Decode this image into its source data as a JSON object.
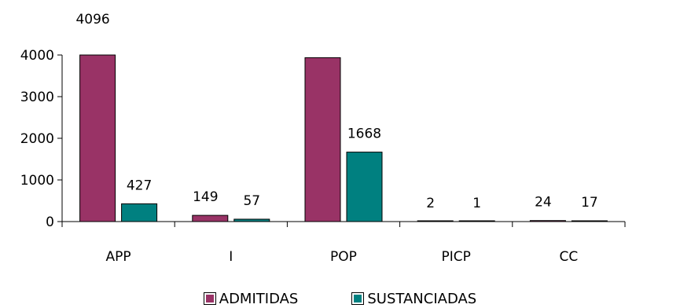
{
  "chart_data": {
    "type": "bar",
    "categories": [
      "APP",
      "I",
      "POP",
      "PICP",
      "CC"
    ],
    "series": [
      {
        "name": "ADMITIDAS",
        "color": "#993366",
        "values": [
          4096,
          149,
          3936,
          2,
          24
        ]
      },
      {
        "name": "SUSTANCIADAS",
        "color": "#008080",
        "values": [
          427,
          57,
          1668,
          1,
          17
        ]
      }
    ],
    "data_labels": [
      [
        "4096",
        "149",
        "",
        "2",
        "24"
      ],
      [
        "427",
        "57",
        "1668",
        "1",
        "17"
      ]
    ],
    "yticks": [
      0,
      1000,
      2000,
      3000,
      4000
    ],
    "ylim": [
      0,
      4000
    ],
    "title": "",
    "xlabel": "",
    "ylabel": "",
    "grid": false,
    "legend_position": "bottom"
  }
}
